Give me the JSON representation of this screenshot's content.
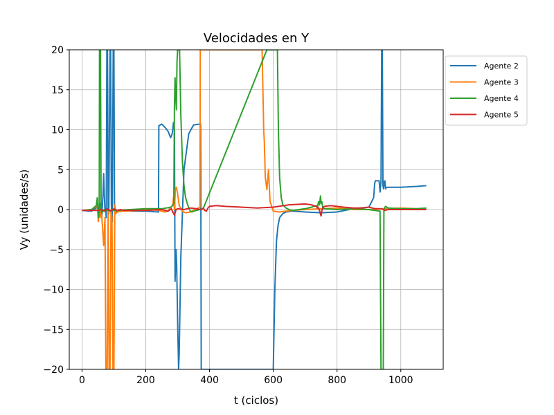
{
  "chart_data": {
    "type": "line",
    "title": "Velocidades en Y",
    "xlabel": "t (ciclos)",
    "ylabel": "Vy (unidades/s)",
    "xlim": [
      -40,
      1133
    ],
    "ylim": [
      -20,
      20
    ],
    "xticks": [
      0,
      200,
      400,
      600,
      800,
      1000
    ],
    "yticks": [
      -20,
      -15,
      -10,
      -5,
      0,
      5,
      10,
      15,
      20
    ],
    "xtick_labels": [
      "0",
      "200",
      "400",
      "600",
      "800",
      "1000"
    ],
    "ytick_labels": [
      "−20",
      "−15",
      "−10",
      "−5",
      "0",
      "5",
      "10",
      "15",
      "20"
    ],
    "grid": true,
    "legend_position": "outside-top-right",
    "series": [
      {
        "name": "Agente 2",
        "color": "#1f77b4",
        "x": [
          0,
          30,
          48,
          52,
          55,
          58,
          62,
          66,
          68,
          70,
          72,
          74,
          76,
          78,
          80,
          82,
          84,
          88,
          90,
          92,
          95,
          98,
          100,
          102,
          105,
          110,
          130,
          160,
          200,
          240,
          241,
          250,
          260,
          270,
          278,
          283,
          287,
          290,
          292,
          295,
          297,
          300,
          303,
          305,
          310,
          320,
          335,
          350,
          370,
          372,
          373,
          374,
          375,
          600,
          605,
          610,
          615,
          620,
          630,
          640,
          660,
          700,
          750,
          800,
          850,
          900,
          915,
          918,
          920,
          925,
          932,
          935,
          938,
          940,
          942,
          944,
          946,
          948,
          950,
          952,
          955,
          960,
          1000,
          1050,
          1080
        ],
        "y": [
          -0.1,
          -0.2,
          0.3,
          -0.5,
          0.1,
          0.8,
          -1.0,
          2.0,
          4.5,
          2.0,
          -0.2,
          0.0,
          -1.0,
          20,
          20,
          0,
          -0.5,
          20,
          20,
          0.5,
          -1.5,
          20,
          20,
          0.0,
          -0.3,
          -0.2,
          -0.1,
          -0.2,
          -0.2,
          -0.3,
          10.5,
          10.7,
          10.3,
          9.8,
          9.0,
          9.5,
          10.9,
          10.0,
          -9.0,
          -5.0,
          -6.8,
          -14,
          -20,
          -18,
          -6,
          5,
          9.5,
          10.6,
          10.7,
          10.7,
          0,
          -20,
          -20,
          -20,
          -10,
          -4.0,
          -2.0,
          -1.0,
          -0.5,
          -0.3,
          -0.2,
          -0.3,
          -0.4,
          -0.3,
          0.1,
          0.3,
          1.5,
          3.2,
          3.6,
          3.6,
          3.6,
          2.2,
          3.5,
          20,
          20,
          3.0,
          2.6,
          3.5,
          3.6,
          2.6,
          2.8,
          2.8,
          2.8,
          2.9,
          3.0
        ]
      },
      {
        "name": "Agente 3",
        "color": "#ff7f0e",
        "x": [
          0,
          30,
          48,
          51,
          54,
          57,
          60,
          64,
          68,
          72,
          75,
          79,
          82,
          85,
          88,
          91,
          94,
          97,
          100,
          103,
          106,
          110,
          130,
          180,
          220,
          240,
          260,
          270,
          275,
          285,
          287,
          290,
          293,
          296,
          300,
          305,
          315,
          325,
          340,
          355,
          370,
          371,
          372,
          373,
          374,
          565,
          570,
          572,
          575,
          580,
          585,
          590,
          600,
          620,
          640,
          660,
          700,
          750,
          800,
          850,
          900,
          950,
          1000,
          1050,
          1080
        ],
        "y": [
          -0.1,
          0.0,
          0.5,
          -1.5,
          0.3,
          -1.0,
          0.2,
          -2.0,
          -4.5,
          -1.0,
          -20,
          -20,
          0.0,
          -20,
          -20,
          0.0,
          -1.0,
          -20,
          -20,
          0.6,
          -0.5,
          -0.3,
          -0.2,
          -0.1,
          0.0,
          -0.1,
          -0.3,
          -0.2,
          0.2,
          0.5,
          1.5,
          0.0,
          2.5,
          2.8,
          2.0,
          0.5,
          -0.2,
          -0.4,
          -0.3,
          0.0,
          0.3,
          20,
          20,
          20,
          20,
          20,
          10,
          8.5,
          4.0,
          2.5,
          5.0,
          1.0,
          -0.2,
          -0.3,
          -0.2,
          -0.1,
          0.0,
          0.1,
          0.2,
          0.0,
          0.0,
          0.1,
          0.2,
          0.1,
          0.1
        ]
      },
      {
        "name": "Agente 4",
        "color": "#2ca02c",
        "x": [
          0,
          30,
          45,
          48,
          52,
          54,
          55,
          58,
          60,
          62,
          65,
          70,
          80,
          100,
          150,
          200,
          250,
          280,
          288,
          290,
          292,
          294,
          296,
          298,
          300,
          303,
          306,
          310,
          315,
          320,
          325,
          330,
          335,
          340,
          345,
          350,
          360,
          370,
          380,
          580,
          600,
          610,
          613,
          616,
          620,
          625,
          630,
          640,
          650,
          660,
          680,
          700,
          720,
          735,
          738,
          742,
          745,
          748,
          750,
          752,
          755,
          760,
          800,
          850,
          900,
          935,
          938,
          940,
          942,
          945,
          947,
          950,
          953,
          956,
          960,
          1000,
          1050,
          1080
        ],
        "y": [
          -0.1,
          0.0,
          0.5,
          1.5,
          -1.0,
          0.0,
          20,
          20,
          0.0,
          -0.5,
          -0.2,
          0.0,
          -0.1,
          -0.1,
          0.0,
          0.1,
          0.1,
          0.3,
          0.8,
          13.0,
          16.5,
          14.0,
          12.5,
          18.5,
          20,
          20,
          20,
          12,
          6.0,
          3.0,
          1.5,
          0.8,
          0.2,
          -0.2,
          -0.3,
          -0.2,
          -0.1,
          0.0,
          0.1,
          20,
          20,
          20,
          20,
          10,
          4.0,
          1.5,
          0.6,
          0.2,
          0.0,
          -0.1,
          0.0,
          0.1,
          0.3,
          0.5,
          0.2,
          1.0,
          0.6,
          1.7,
          0.8,
          1.0,
          0.3,
          0.1,
          0.0,
          0.1,
          0.0,
          -0.2,
          -20,
          -20,
          -20,
          -20,
          0.0,
          0.3,
          0.4,
          0.3,
          0.2,
          0.1,
          0.1,
          0.2
        ]
      },
      {
        "name": "Agente 5",
        "color": "#d62728",
        "x": [
          0,
          50,
          60,
          70,
          80,
          90,
          100,
          110,
          120,
          130,
          150,
          200,
          250,
          270,
          280,
          285,
          290,
          295,
          300,
          320,
          340,
          360,
          375,
          380,
          385,
          390,
          395,
          400,
          420,
          450,
          500,
          550,
          600,
          650,
          700,
          720,
          740,
          745,
          748,
          750,
          752,
          755,
          760,
          780,
          800,
          820,
          850,
          880,
          900,
          920,
          940,
          950,
          960,
          1000,
          1050,
          1080
        ],
        "y": [
          -0.1,
          -0.1,
          0.0,
          -0.2,
          0.1,
          -0.2,
          0.1,
          -0.1,
          0.0,
          -0.1,
          -0.1,
          -0.1,
          0.0,
          -0.2,
          0.1,
          -0.3,
          -0.7,
          0.0,
          0.1,
          0.0,
          0.2,
          0.1,
          0.0,
          0.2,
          -0.1,
          -0.2,
          0.2,
          0.4,
          0.5,
          0.4,
          0.3,
          0.2,
          0.3,
          0.6,
          0.7,
          0.6,
          0.3,
          -0.1,
          -0.6,
          -0.8,
          -0.2,
          0.2,
          0.4,
          0.5,
          0.4,
          0.3,
          0.2,
          0.2,
          0.3,
          0.1,
          0.1,
          -0.1,
          0.0,
          0.0,
          0.0,
          0.0
        ]
      }
    ]
  }
}
